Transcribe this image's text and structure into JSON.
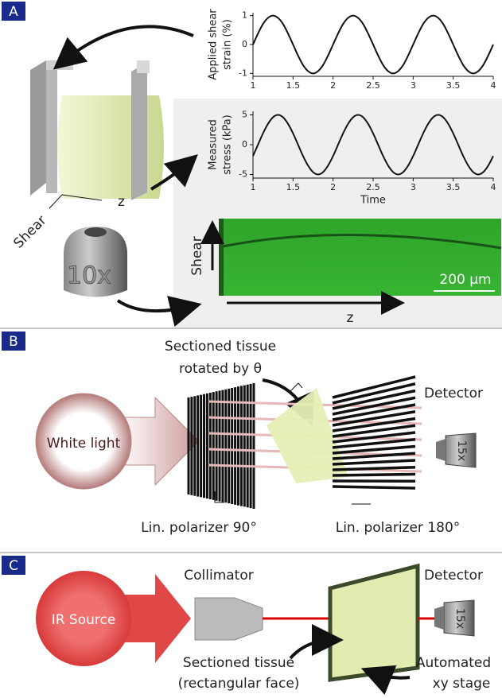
{
  "chart_data": [
    {
      "type": "line",
      "ylabel": [
        "Applied shear",
        "strain (%)"
      ],
      "color": "#111",
      "x": [
        1,
        1.0625,
        1.125,
        1.1875,
        1.25,
        1.3125,
        1.375,
        1.4375,
        1.5,
        1.5625,
        1.625,
        1.6875,
        1.75,
        1.8125,
        1.875,
        1.9375,
        2,
        2.0625,
        2.125,
        2.1875,
        2.25,
        2.3125,
        2.375,
        2.4375,
        2.5,
        2.5625,
        2.625,
        2.6875,
        2.75,
        2.8125,
        2.875,
        2.9375,
        3,
        3.0625,
        3.125,
        3.1875,
        3.25,
        3.3125,
        3.375,
        3.4375,
        3.5,
        3.5625,
        3.625,
        3.6875,
        3.75,
        3.8125,
        3.875,
        3.9375,
        4
      ],
      "values": [
        0,
        0.38,
        0.71,
        0.92,
        1,
        0.92,
        0.71,
        0.38,
        0,
        -0.38,
        -0.71,
        -0.92,
        -1,
        -0.92,
        -0.71,
        -0.38,
        0,
        0.38,
        0.71,
        0.92,
        1,
        0.92,
        0.71,
        0.38,
        0,
        -0.38,
        -0.71,
        -0.92,
        -1,
        -0.92,
        -0.71,
        -0.38,
        0,
        0.38,
        0.71,
        0.92,
        1,
        0.92,
        0.71,
        0.38,
        0,
        -0.38,
        -0.71,
        -0.92,
        -1,
        -0.92,
        -0.71,
        -0.38,
        0
      ],
      "xlim": [
        1,
        4
      ],
      "xticks": [
        1,
        1.5,
        2,
        2.5,
        3,
        3.5,
        4
      ],
      "ylim": [
        -1.1,
        1.1
      ],
      "yticks": [
        -1,
        0,
        1
      ]
    },
    {
      "type": "line",
      "ylabel": [
        "Measured",
        "stress (kPa)"
      ],
      "xlabel": "Time",
      "color": "#111",
      "x": [
        1,
        1.0625,
        1.125,
        1.1875,
        1.25,
        1.3125,
        1.375,
        1.4375,
        1.5,
        1.5625,
        1.625,
        1.6875,
        1.75,
        1.8125,
        1.875,
        1.9375,
        2,
        2.0625,
        2.125,
        2.1875,
        2.25,
        2.3125,
        2.375,
        2.4375,
        2.5,
        2.5625,
        2.625,
        2.6875,
        2.75,
        2.8125,
        2.875,
        2.9375,
        3,
        3.0625,
        3.125,
        3.1875,
        3.25,
        3.3125,
        3.375,
        3.4375,
        3.5,
        3.5625,
        3.625,
        3.6875,
        3.75,
        3.8125,
        3.875,
        3.9375,
        4
      ],
      "values": [
        -1.9,
        0,
        1.9,
        3.5,
        4.6,
        5,
        4.6,
        3.5,
        1.9,
        0,
        -1.9,
        -3.5,
        -4.6,
        -5,
        -4.6,
        -3.5,
        -1.9,
        0,
        1.9,
        3.5,
        4.6,
        5,
        4.6,
        3.5,
        1.9,
        0,
        -1.9,
        -3.5,
        -4.6,
        -5,
        -4.6,
        -3.5,
        -1.9,
        0,
        1.9,
        3.5,
        4.6,
        5,
        4.6,
        3.5,
        1.9,
        0,
        -1.9,
        -3.5,
        -4.6,
        -5,
        -4.6,
        -3.5,
        -1.9
      ],
      "xlim": [
        1,
        4
      ],
      "xticks": [
        1,
        1.5,
        2,
        2.5,
        3,
        3.5,
        4
      ],
      "ylim": [
        -5.6,
        5.6
      ],
      "yticks": [
        -5,
        0,
        5
      ]
    }
  ],
  "panel_a": {
    "label": "A",
    "shear": "Shear",
    "z": "z",
    "objective": "10x",
    "image_shear": "Shear",
    "image_z": "z",
    "scale_bar": "200 µm"
  },
  "panel_b": {
    "label": "B",
    "tissue": [
      "Sectioned tissue",
      "rotated by θ"
    ],
    "source": "White light",
    "detector": "Detector",
    "objective": "15x",
    "polarizer_1": "Lin. polarizer 90°",
    "polarizer_2": "Lin. polarizer 180°"
  },
  "panel_c": {
    "label": "C",
    "source": "IR Source",
    "collimator": "Collimator",
    "detector": "Detector",
    "objective": "15x",
    "tissue": [
      "Sectioned tissue",
      "(rectangular face)"
    ],
    "stage": [
      "Automated",
      "xy stage"
    ]
  }
}
